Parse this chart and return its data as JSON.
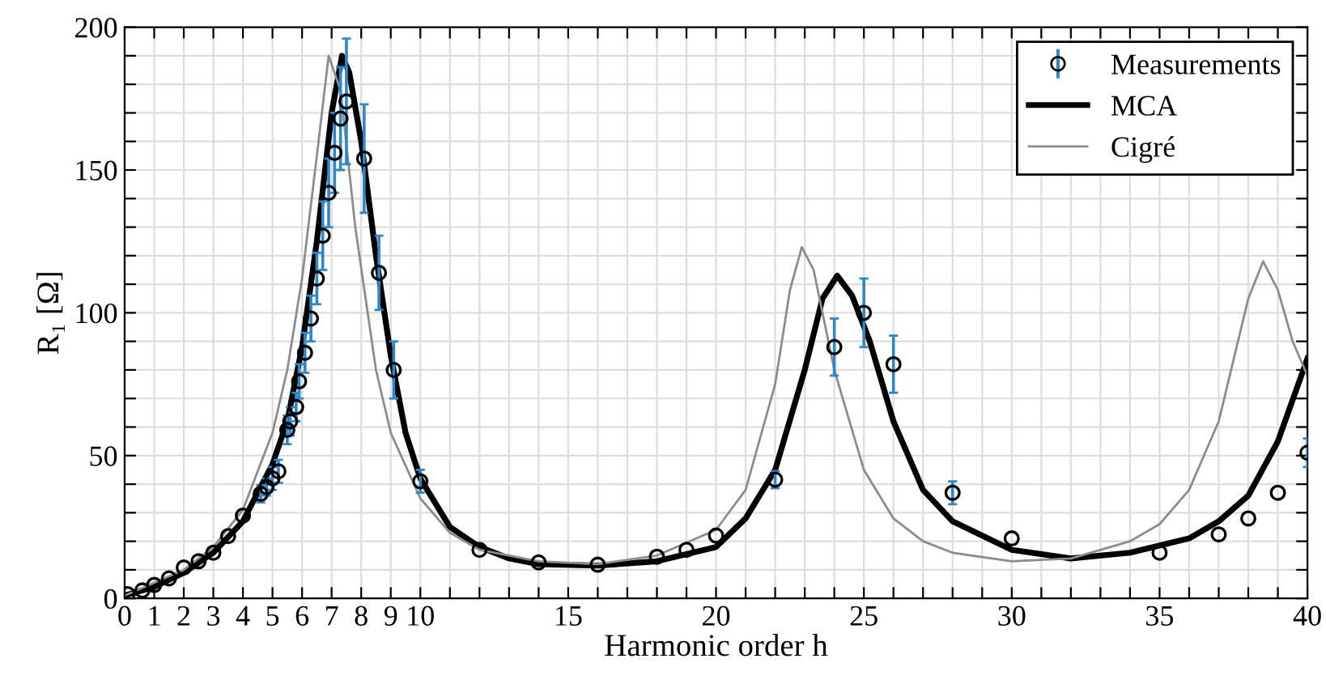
{
  "chart_data": {
    "type": "line",
    "xlabel": "Harmonic order h",
    "ylabel": "R₁ [Ω]",
    "xlim": [
      0,
      40
    ],
    "ylim": [
      0,
      200
    ],
    "xticks": [
      0,
      1,
      2,
      3,
      4,
      5,
      6,
      7,
      8,
      9,
      10,
      {
        "value": 11,
        "label": null
      },
      {
        "value": 12,
        "label": null
      },
      {
        "value": 13,
        "label": null
      },
      {
        "value": 14,
        "label": null
      },
      15,
      {
        "value": 16,
        "label": null
      },
      {
        "value": 17,
        "label": null
      },
      {
        "value": 18,
        "label": null
      },
      {
        "value": 19,
        "label": null
      },
      20,
      {
        "value": 21,
        "label": null
      },
      {
        "value": 22,
        "label": null
      },
      {
        "value": 23,
        "label": null
      },
      {
        "value": 24,
        "label": null
      },
      25,
      {
        "value": 26,
        "label": null
      },
      {
        "value": 27,
        "label": null
      },
      {
        "value": 28,
        "label": null
      },
      {
        "value": 29,
        "label": null
      },
      30,
      {
        "value": 31,
        "label": null
      },
      {
        "value": 32,
        "label": null
      },
      {
        "value": 33,
        "label": null
      },
      {
        "value": 34,
        "label": null
      },
      35,
      {
        "value": 36,
        "label": null
      },
      {
        "value": 37,
        "label": null
      },
      {
        "value": 38,
        "label": null
      },
      {
        "value": 39,
        "label": null
      },
      40
    ],
    "yticks": [
      0,
      {
        "value": 10,
        "label": null
      },
      {
        "value": 20,
        "label": null
      },
      {
        "value": 30,
        "label": null
      },
      {
        "value": 40,
        "label": null
      },
      50,
      {
        "value": 60,
        "label": null
      },
      {
        "value": 70,
        "label": null
      },
      {
        "value": 80,
        "label": null
      },
      {
        "value": 90,
        "label": null
      },
      100,
      {
        "value": 110,
        "label": null
      },
      {
        "value": 120,
        "label": null
      },
      {
        "value": 130,
        "label": null
      },
      {
        "value": 140,
        "label": null
      },
      150,
      {
        "value": 160,
        "label": null
      },
      {
        "value": 170,
        "label": null
      },
      {
        "value": 180,
        "label": null
      },
      {
        "value": 190,
        "label": null
      },
      200
    ],
    "grid": true,
    "legend": "top right",
    "series": [
      {
        "name": "Measurements",
        "type": "scatter",
        "marker": "circle",
        "color": "#000000",
        "x": [
          0.1,
          0.6,
          1,
          1.5,
          2,
          2.5,
          3,
          3.5,
          4,
          4.6,
          4.8,
          5,
          5.2,
          5.5,
          5.6,
          5.8,
          5.9,
          6.1,
          6.3,
          6.5,
          6.7,
          6.9,
          7.1,
          7.3,
          7.5,
          8.1,
          8.6,
          9.1,
          10,
          12,
          14,
          16,
          18,
          19,
          20,
          22,
          24,
          25,
          26,
          28,
          30,
          35,
          37,
          38,
          39,
          40
        ],
        "values": [
          1.5,
          2.8,
          4.7,
          7,
          10.8,
          13,
          16,
          21.8,
          29,
          36.6,
          39,
          42,
          44.5,
          59,
          62,
          67,
          76,
          86,
          98,
          112,
          127,
          142,
          156,
          168,
          174,
          154,
          114,
          80,
          41,
          17,
          12.6,
          11.8,
          14.6,
          17,
          22,
          41.6,
          88,
          100,
          82,
          37,
          21,
          16,
          22.4,
          28,
          37,
          51
        ],
        "errors": [
          null,
          null,
          null,
          null,
          null,
          null,
          null,
          null,
          null,
          3,
          3,
          4,
          4,
          5,
          5,
          5,
          6,
          7,
          8,
          9,
          12,
          12,
          14,
          18,
          22,
          19,
          13,
          10,
          4,
          null,
          null,
          null,
          null,
          null,
          null,
          3,
          10,
          12,
          10,
          4,
          null,
          null,
          null,
          null,
          null,
          5
        ]
      },
      {
        "name": "MCA",
        "color": "#000000",
        "x": [
          0,
          1,
          2,
          3,
          4,
          5,
          5.5,
          6,
          6.5,
          7,
          7.35,
          7.6,
          8,
          8.5,
          9,
          9.5,
          10,
          11,
          12,
          13,
          14,
          16,
          18,
          20,
          21,
          22,
          23,
          23.6,
          24.1,
          24.6,
          25.2,
          26,
          27,
          28,
          30,
          32,
          34,
          36,
          37,
          38,
          39,
          40
        ],
        "values": [
          1,
          4,
          9,
          16,
          27,
          47,
          62,
          88,
          125,
          170,
          190,
          184,
          160,
          120,
          85,
          58,
          42,
          25,
          18,
          14,
          12,
          11.5,
          13,
          18,
          28,
          45,
          80,
          105,
          113,
          106,
          90,
          62,
          38,
          27,
          17,
          14,
          16,
          21,
          27,
          36,
          55,
          84
        ]
      },
      {
        "name": "Cigré",
        "color": "#8c8c8c",
        "x": [
          0,
          2,
          3,
          4,
          5,
          5.5,
          6,
          6.5,
          6.9,
          7.3,
          7.8,
          8.5,
          9,
          10,
          11,
          12,
          14,
          16,
          18,
          20,
          21,
          22,
          22.5,
          22.9,
          23.3,
          24,
          25,
          26,
          27,
          28,
          30,
          32,
          34,
          35,
          36,
          37,
          38,
          38.5,
          39,
          39.5,
          40
        ],
        "values": [
          1,
          10,
          18,
          31,
          58,
          80,
          112,
          155,
          190,
          178,
          130,
          80,
          58,
          35,
          23,
          17,
          13,
          12,
          15,
          24,
          38,
          75,
          108,
          123,
          115,
          80,
          45,
          28,
          20,
          16,
          13,
          14,
          20,
          26,
          38,
          62,
          105,
          118,
          108,
          90,
          78
        ]
      }
    ]
  }
}
